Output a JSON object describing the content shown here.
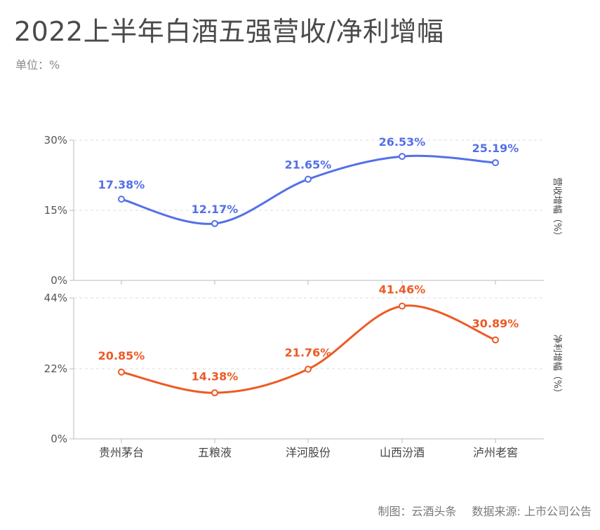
{
  "title": "2022上半年白酒五强营收/净利增幅",
  "unit_label": "单位：%",
  "footer": {
    "made_by": "制图：云酒头条",
    "source": "数据来源: 上市公司公告"
  },
  "colors": {
    "revenue": "#5470e8",
    "profit": "#ee5a24",
    "axis": "#bbbbbb",
    "grid": "#dddddd"
  },
  "chart_data": [
    {
      "type": "line",
      "ylabel": "营收增幅（%）",
      "ylim": [
        0,
        30
      ],
      "yticks": [
        "30%",
        "15%",
        "0%"
      ],
      "grid": true,
      "categories": [
        "贵州茅台",
        "五粮液",
        "洋河股份",
        "山西汾酒",
        "泸州老窖"
      ],
      "series": [
        {
          "values": [
            17.38,
            12.17,
            21.65,
            26.53,
            25.19
          ],
          "labels": [
            "17.38%",
            "12.17%",
            "21.65%",
            "26.53%",
            "25.19%"
          ]
        }
      ]
    },
    {
      "type": "line",
      "ylabel": "净利增幅（%）",
      "ylim": [
        0,
        44
      ],
      "yticks": [
        "44%",
        "22%",
        "0%"
      ],
      "grid": true,
      "categories": [
        "贵州茅台",
        "五粮液",
        "洋河股份",
        "山西汾酒",
        "泸州老窖"
      ],
      "series": [
        {
          "values": [
            20.85,
            14.38,
            21.76,
            41.46,
            30.89
          ],
          "labels": [
            "20.85%",
            "14.38%",
            "21.76%",
            "41.46%",
            "30.89%"
          ]
        }
      ]
    }
  ]
}
